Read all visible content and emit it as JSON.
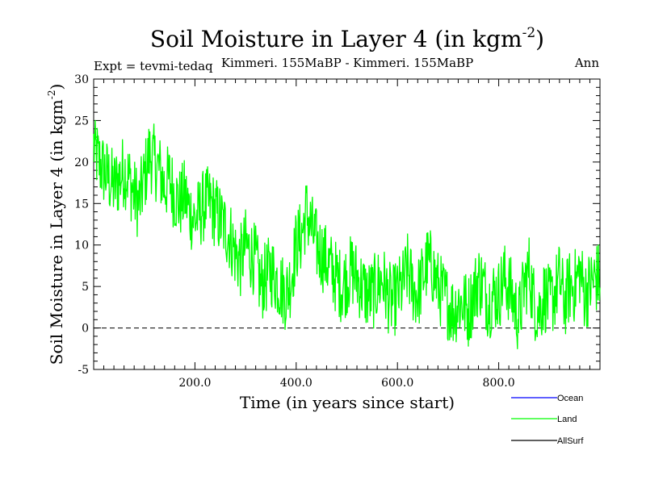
{
  "chart_data": {
    "type": "line",
    "title_main": "Soil Moisture in Layer 4 (in kgm",
    "title_sup": "-2",
    "title_end": ")",
    "subtitle_left": "Expt = tevmi-tedaq",
    "subtitle_center": "Kimmeri. 155MaBP - Kimmeri. 155MaBP",
    "subtitle_right": "Ann",
    "xlabel": "Time (in years since start)",
    "ylabel_main": "Soil Moisture in Layer 4 (in kgm",
    "ylabel_sup": "-2",
    "ylabel_end": ")",
    "xlim": [
      0,
      1000
    ],
    "ylim": [
      -5,
      30
    ],
    "xticks": [
      200,
      400,
      600,
      800
    ],
    "xtick_labels": [
      "200.0",
      "400.0",
      "600.0",
      "800.0"
    ],
    "yticks": [
      -5,
      0,
      5,
      10,
      15,
      20,
      25,
      30
    ],
    "ytick_labels": [
      "-5",
      "0",
      "5",
      "10",
      "15",
      "20",
      "25",
      "30"
    ],
    "zero_line": 0,
    "legend": [
      {
        "name": "Ocean",
        "color": "#0000ff"
      },
      {
        "name": "Land",
        "color": "#00ff00"
      },
      {
        "name": "AllSurf",
        "color": "#000000"
      }
    ],
    "series": [
      {
        "name": "Land",
        "color": "#00ff00",
        "x_start": 0,
        "x_step": 10,
        "values": [
          22,
          20,
          19,
          18,
          17,
          18,
          19,
          18,
          16,
          15,
          18,
          21,
          20,
          19,
          17,
          18,
          16,
          15,
          16,
          14,
          13,
          14,
          15,
          15,
          14,
          13,
          12,
          11,
          9,
          8,
          10,
          9,
          8,
          5,
          6,
          7,
          6,
          5,
          4,
          6,
          10,
          11,
          14,
          12,
          10,
          9,
          8,
          7,
          6,
          5,
          6,
          7,
          6,
          5,
          4,
          4,
          5,
          6,
          4,
          3,
          4,
          5,
          7,
          5,
          4,
          6,
          8,
          7,
          5,
          4,
          3,
          2,
          3,
          3,
          2,
          4,
          6,
          5,
          3,
          4,
          4,
          6,
          5,
          3,
          1,
          5,
          7,
          3,
          2,
          4,
          3,
          4,
          6,
          3,
          5,
          5,
          7,
          4,
          5,
          6
        ]
      }
    ]
  }
}
